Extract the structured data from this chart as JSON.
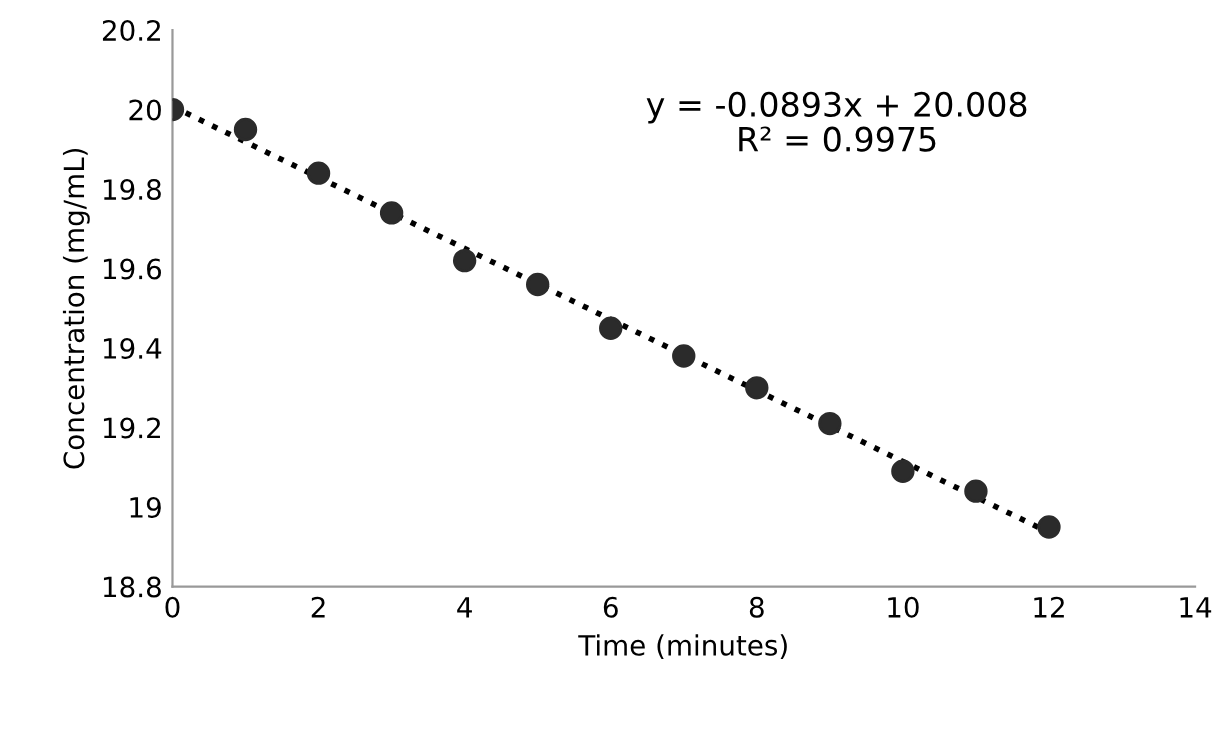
{
  "chart_data": {
    "type": "scatter",
    "xlabel": "Time (minutes)",
    "ylabel": "Concentration (mg/mL)",
    "xlim": [
      0,
      14
    ],
    "xticks": [
      0,
      2,
      4,
      6,
      8,
      10,
      12,
      14
    ],
    "ylim": [
      18.8,
      20.2
    ],
    "yticks": [
      18.8,
      19,
      19.2,
      19.4,
      19.6,
      19.8,
      20,
      20.2
    ],
    "grid": false,
    "legend": false,
    "series": [
      {
        "color": "#2b2b2b",
        "marker": "circle",
        "x": [
          0,
          1,
          2,
          3,
          4,
          5,
          6,
          7,
          8,
          9,
          10,
          11,
          12
        ],
        "values": [
          20.0,
          19.95,
          19.84,
          19.74,
          19.62,
          19.56,
          19.45,
          19.38,
          19.3,
          19.21,
          19.09,
          19.04,
          18.95
        ]
      },
      {
        "type": "line",
        "color": "#000000",
        "line_style": "dotted",
        "marker": "none",
        "x": [
          0,
          12
        ],
        "values": [
          20.008,
          18.936
        ]
      }
    ],
    "annotations": [
      "y = -0.0893x + 20.008\nR² = 0.9975"
    ]
  }
}
